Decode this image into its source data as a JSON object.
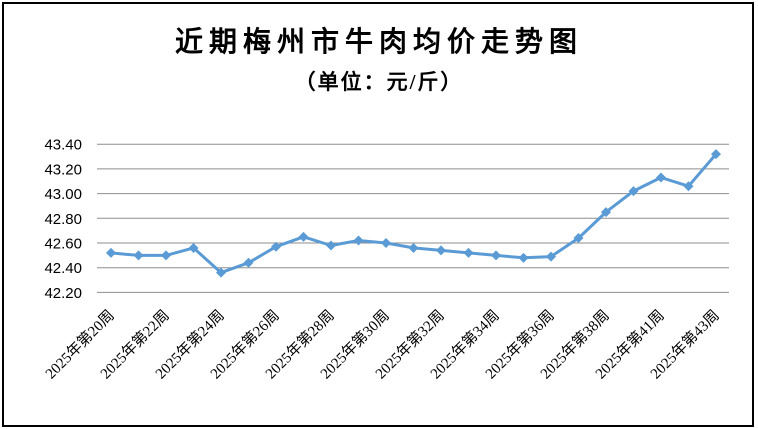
{
  "header": {
    "title": "近期梅州市牛肉均价走势图",
    "subtitle": "（单位：元/斤）"
  },
  "chart_data": {
    "type": "line",
    "title": "近期梅州市牛肉均价走势图",
    "subtitle": "（单位：元/斤）",
    "unit": "元/斤",
    "x_tick_labels": [
      "2025年第20周",
      "2025年第22周",
      "2025年第24周",
      "2025年第26周",
      "2025年第28周",
      "2025年第30周",
      "2025年第32周",
      "2025年第34周",
      "2025年第36周",
      "2025年第38周",
      "2025年第41周",
      "2025年第43周"
    ],
    "x_tick_every": 2,
    "values": [
      42.52,
      42.5,
      42.5,
      42.56,
      42.36,
      42.44,
      42.57,
      42.65,
      42.58,
      42.62,
      42.6,
      42.56,
      42.54,
      42.52,
      42.5,
      42.48,
      42.49,
      42.64,
      42.85,
      43.02,
      43.13,
      43.06,
      43.32
    ],
    "ylim": [
      42.2,
      43.4
    ],
    "y_tick_step": 0.2,
    "y_tick_labels": [
      "43.40",
      "43.20",
      "43.00",
      "42.80",
      "42.60",
      "42.40",
      "42.20"
    ],
    "grid": "horizontal",
    "legend_position": "none",
    "marker": "diamond",
    "colors": {
      "line": "#5B9BD5",
      "marker": "#5B9BD5",
      "gridline": "#8E8E8E",
      "text": "#000000",
      "background": "#FFFFFF",
      "frame_border": "#000000"
    }
  }
}
